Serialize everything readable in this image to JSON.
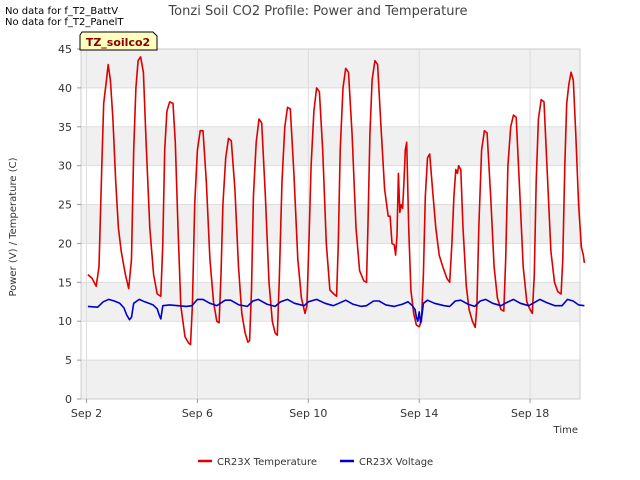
{
  "notices": [
    "No data for f_T2_BattV",
    "No data for f_T2_PanelT"
  ],
  "site_badge": "TZ_soilco2",
  "chart_data": {
    "type": "line",
    "title": "Tonzi Soil CO2 Profile: Power and Temperature",
    "xlabel": "Time",
    "ylabel": "Power (V) / Temperature (C)",
    "xlim_days": [
      1.8,
      19.8
    ],
    "ylim": [
      0,
      45
    ],
    "yticks": [
      0,
      5,
      10,
      15,
      20,
      25,
      30,
      35,
      40,
      45
    ],
    "xticks": [
      {
        "day": 2,
        "label": "Sep 2"
      },
      {
        "day": 6,
        "label": "Sep 6"
      },
      {
        "day": 10,
        "label": "Sep 10"
      },
      {
        "day": 14,
        "label": "Sep 14"
      },
      {
        "day": 18,
        "label": "Sep 18"
      }
    ],
    "grid": true,
    "background_bands": true,
    "legend_position": "bottom",
    "series": [
      {
        "name": "CR23X Temperature",
        "color": "#dd0000",
        "points": [
          [
            2.05,
            16
          ],
          [
            2.2,
            15.5
          ],
          [
            2.35,
            14.5
          ],
          [
            2.45,
            17
          ],
          [
            2.55,
            30
          ],
          [
            2.62,
            38
          ],
          [
            2.7,
            40.5
          ],
          [
            2.78,
            43
          ],
          [
            2.86,
            41
          ],
          [
            2.95,
            36
          ],
          [
            3.05,
            28
          ],
          [
            3.15,
            22
          ],
          [
            3.25,
            19
          ],
          [
            3.4,
            16
          ],
          [
            3.52,
            14.2
          ],
          [
            3.62,
            18
          ],
          [
            3.7,
            32
          ],
          [
            3.78,
            40
          ],
          [
            3.86,
            43.5
          ],
          [
            3.95,
            44
          ],
          [
            4.05,
            42
          ],
          [
            4.15,
            33
          ],
          [
            4.28,
            22
          ],
          [
            4.42,
            16
          ],
          [
            4.55,
            13.5
          ],
          [
            4.68,
            13.2
          ],
          [
            4.75,
            20
          ],
          [
            4.82,
            32
          ],
          [
            4.9,
            37
          ],
          [
            5.0,
            38.2
          ],
          [
            5.12,
            38
          ],
          [
            5.2,
            33
          ],
          [
            5.3,
            22
          ],
          [
            5.4,
            12
          ],
          [
            5.55,
            8
          ],
          [
            5.68,
            7.2
          ],
          [
            5.75,
            7
          ],
          [
            5.82,
            12
          ],
          [
            5.9,
            25
          ],
          [
            6.0,
            32
          ],
          [
            6.1,
            34.5
          ],
          [
            6.2,
            34.5
          ],
          [
            6.32,
            28
          ],
          [
            6.45,
            18
          ],
          [
            6.58,
            12.5
          ],
          [
            6.7,
            10
          ],
          [
            6.78,
            9.8
          ],
          [
            6.85,
            16
          ],
          [
            6.92,
            25
          ],
          [
            7.02,
            31
          ],
          [
            7.12,
            33.5
          ],
          [
            7.22,
            33.2
          ],
          [
            7.35,
            27
          ],
          [
            7.48,
            17
          ],
          [
            7.6,
            11
          ],
          [
            7.72,
            8.5
          ],
          [
            7.82,
            7.3
          ],
          [
            7.88,
            7.5
          ],
          [
            7.95,
            14
          ],
          [
            8.02,
            26
          ],
          [
            8.12,
            33
          ],
          [
            8.22,
            36
          ],
          [
            8.32,
            35.5
          ],
          [
            8.45,
            26
          ],
          [
            8.58,
            15
          ],
          [
            8.7,
            10
          ],
          [
            8.8,
            8.5
          ],
          [
            8.88,
            8.2
          ],
          [
            8.95,
            15
          ],
          [
            9.05,
            28
          ],
          [
            9.15,
            35
          ],
          [
            9.25,
            37.5
          ],
          [
            9.35,
            37.3
          ],
          [
            9.48,
            29
          ],
          [
            9.62,
            18
          ],
          [
            9.75,
            13
          ],
          [
            9.88,
            11
          ],
          [
            9.95,
            12
          ],
          [
            10.02,
            20
          ],
          [
            10.1,
            30
          ],
          [
            10.2,
            37
          ],
          [
            10.3,
            40
          ],
          [
            10.4,
            39.5
          ],
          [
            10.52,
            32
          ],
          [
            10.65,
            20
          ],
          [
            10.78,
            14
          ],
          [
            10.92,
            13.5
          ],
          [
            11.02,
            13.2
          ],
          [
            11.08,
            20
          ],
          [
            11.15,
            32
          ],
          [
            11.25,
            40
          ],
          [
            11.35,
            42.5
          ],
          [
            11.45,
            42
          ],
          [
            11.58,
            34
          ],
          [
            11.72,
            22
          ],
          [
            11.85,
            16.5
          ],
          [
            12.0,
            15.2
          ],
          [
            12.1,
            15
          ],
          [
            12.15,
            22
          ],
          [
            12.22,
            34
          ],
          [
            12.3,
            41
          ],
          [
            12.4,
            43.5
          ],
          [
            12.5,
            43
          ],
          [
            12.62,
            35
          ],
          [
            12.75,
            27
          ],
          [
            12.88,
            23.5
          ],
          [
            12.95,
            23.5
          ],
          [
            13.02,
            20
          ],
          [
            13.1,
            19.8
          ],
          [
            13.15,
            18.5
          ],
          [
            13.2,
            21
          ],
          [
            13.25,
            29
          ],
          [
            13.3,
            24
          ],
          [
            13.35,
            25
          ],
          [
            13.4,
            24.5
          ],
          [
            13.45,
            28
          ],
          [
            13.5,
            32
          ],
          [
            13.55,
            33
          ],
          [
            13.62,
            22
          ],
          [
            13.7,
            14
          ],
          [
            13.8,
            11
          ],
          [
            13.9,
            9.5
          ],
          [
            14.0,
            9.3
          ],
          [
            14.08,
            10
          ],
          [
            14.15,
            16
          ],
          [
            14.22,
            26
          ],
          [
            14.3,
            31
          ],
          [
            14.38,
            31.5
          ],
          [
            14.48,
            27
          ],
          [
            14.6,
            22
          ],
          [
            14.72,
            18.5
          ],
          [
            14.85,
            17
          ],
          [
            15.0,
            15.5
          ],
          [
            15.1,
            15
          ],
          [
            15.18,
            20
          ],
          [
            15.25,
            26
          ],
          [
            15.32,
            29.5
          ],
          [
            15.38,
            29
          ],
          [
            15.42,
            30
          ],
          [
            15.5,
            29.5
          ],
          [
            15.58,
            22
          ],
          [
            15.7,
            14.5
          ],
          [
            15.8,
            11.5
          ],
          [
            15.92,
            10
          ],
          [
            16.02,
            9.2
          ],
          [
            16.08,
            12
          ],
          [
            16.15,
            22
          ],
          [
            16.25,
            32
          ],
          [
            16.35,
            34.5
          ],
          [
            16.45,
            34.2
          ],
          [
            16.58,
            26
          ],
          [
            16.7,
            17
          ],
          [
            16.82,
            13
          ],
          [
            16.95,
            11.5
          ],
          [
            17.05,
            11.3
          ],
          [
            17.12,
            18
          ],
          [
            17.2,
            30
          ],
          [
            17.3,
            35
          ],
          [
            17.4,
            36.5
          ],
          [
            17.5,
            36.2
          ],
          [
            17.62,
            27
          ],
          [
            17.75,
            17
          ],
          [
            17.88,
            12.5
          ],
          [
            18.0,
            11.5
          ],
          [
            18.08,
            11
          ],
          [
            18.15,
            16
          ],
          [
            18.22,
            28
          ],
          [
            18.3,
            36
          ],
          [
            18.4,
            38.5
          ],
          [
            18.5,
            38.2
          ],
          [
            18.62,
            29
          ],
          [
            18.75,
            19
          ],
          [
            18.88,
            15
          ],
          [
            19.0,
            13.8
          ],
          [
            19.12,
            13.5
          ],
          [
            19.18,
            18
          ],
          [
            19.25,
            30
          ],
          [
            19.32,
            38
          ],
          [
            19.4,
            40.5
          ],
          [
            19.48,
            42
          ],
          [
            19.56,
            41
          ],
          [
            19.65,
            34
          ],
          [
            19.75,
            25
          ],
          [
            19.85,
            19.5
          ],
          [
            19.92,
            18.5
          ],
          [
            19.96,
            17.5
          ]
        ]
      },
      {
        "name": "CR23X Voltage",
        "color": "#0000cc",
        "points": [
          [
            2.05,
            11.9
          ],
          [
            2.4,
            11.8
          ],
          [
            2.6,
            12.5
          ],
          [
            2.8,
            12.8
          ],
          [
            3.0,
            12.6
          ],
          [
            3.2,
            12.3
          ],
          [
            3.35,
            11.7
          ],
          [
            3.45,
            10.8
          ],
          [
            3.55,
            10.2
          ],
          [
            3.62,
            10.5
          ],
          [
            3.7,
            12.3
          ],
          [
            3.9,
            12.8
          ],
          [
            4.1,
            12.5
          ],
          [
            4.4,
            12.1
          ],
          [
            4.55,
            11.6
          ],
          [
            4.62,
            10.8
          ],
          [
            4.68,
            10.3
          ],
          [
            4.75,
            12.0
          ],
          [
            5.0,
            12.1
          ],
          [
            5.3,
            12.0
          ],
          [
            5.6,
            11.9
          ],
          [
            5.8,
            12.0
          ],
          [
            6.0,
            12.8
          ],
          [
            6.2,
            12.8
          ],
          [
            6.45,
            12.3
          ],
          [
            6.7,
            12.0
          ],
          [
            7.0,
            12.7
          ],
          [
            7.2,
            12.7
          ],
          [
            7.5,
            12.1
          ],
          [
            7.8,
            11.9
          ],
          [
            8.0,
            12.6
          ],
          [
            8.2,
            12.8
          ],
          [
            8.5,
            12.2
          ],
          [
            8.8,
            11.9
          ],
          [
            9.0,
            12.5
          ],
          [
            9.25,
            12.8
          ],
          [
            9.5,
            12.3
          ],
          [
            9.85,
            12.0
          ],
          [
            10.0,
            12.5
          ],
          [
            10.3,
            12.8
          ],
          [
            10.6,
            12.3
          ],
          [
            10.9,
            12.0
          ],
          [
            11.1,
            12.3
          ],
          [
            11.35,
            12.7
          ],
          [
            11.6,
            12.2
          ],
          [
            11.9,
            11.9
          ],
          [
            12.1,
            12.0
          ],
          [
            12.35,
            12.6
          ],
          [
            12.55,
            12.6
          ],
          [
            12.8,
            12.1
          ],
          [
            13.1,
            11.9
          ],
          [
            13.4,
            12.2
          ],
          [
            13.6,
            12.5
          ],
          [
            13.75,
            12.0
          ],
          [
            13.85,
            11.5
          ],
          [
            13.9,
            10.5
          ],
          [
            13.95,
            10.0
          ],
          [
            14.0,
            11.2
          ],
          [
            14.05,
            9.8
          ],
          [
            14.1,
            10.8
          ],
          [
            14.15,
            12.3
          ],
          [
            14.3,
            12.7
          ],
          [
            14.55,
            12.3
          ],
          [
            14.9,
            12.0
          ],
          [
            15.1,
            11.9
          ],
          [
            15.3,
            12.6
          ],
          [
            15.5,
            12.7
          ],
          [
            15.75,
            12.2
          ],
          [
            16.0,
            11.9
          ],
          [
            16.2,
            12.6
          ],
          [
            16.4,
            12.8
          ],
          [
            16.65,
            12.3
          ],
          [
            16.95,
            12.0
          ],
          [
            17.15,
            12.4
          ],
          [
            17.4,
            12.8
          ],
          [
            17.65,
            12.3
          ],
          [
            17.95,
            12.0
          ],
          [
            18.15,
            12.4
          ],
          [
            18.35,
            12.8
          ],
          [
            18.6,
            12.4
          ],
          [
            18.9,
            12.0
          ],
          [
            19.15,
            12.0
          ],
          [
            19.35,
            12.8
          ],
          [
            19.55,
            12.6
          ],
          [
            19.75,
            12.1
          ],
          [
            19.96,
            12.0
          ]
        ]
      }
    ]
  }
}
